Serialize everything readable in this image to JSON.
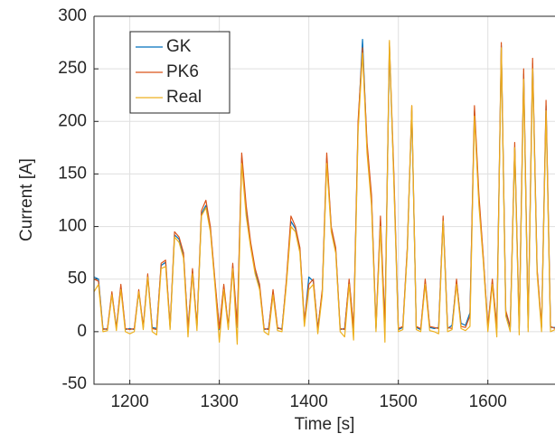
{
  "chart_data": {
    "type": "line",
    "xlabel": "Time [s]",
    "ylabel": "Current [A]",
    "xlim": [
      1160,
      1675
    ],
    "ylim": [
      -50,
      300
    ],
    "xticks": [
      1200,
      1300,
      1400,
      1500,
      1600
    ],
    "yticks": [
      -50,
      0,
      50,
      100,
      150,
      200,
      250,
      300
    ],
    "grid": true,
    "legend": "upper left",
    "x": [
      1160,
      1165,
      1170,
      1175,
      1180,
      1185,
      1190,
      1195,
      1200,
      1205,
      1210,
      1215,
      1220,
      1225,
      1230,
      1235,
      1240,
      1245,
      1250,
      1255,
      1260,
      1265,
      1270,
      1275,
      1280,
      1285,
      1290,
      1295,
      1300,
      1305,
      1310,
      1315,
      1320,
      1325,
      1330,
      1335,
      1340,
      1345,
      1350,
      1355,
      1360,
      1365,
      1370,
      1375,
      1380,
      1385,
      1390,
      1395,
      1400,
      1405,
      1410,
      1415,
      1420,
      1425,
      1430,
      1435,
      1440,
      1445,
      1450,
      1455,
      1460,
      1465,
      1470,
      1475,
      1480,
      1485,
      1490,
      1495,
      1500,
      1505,
      1510,
      1515,
      1520,
      1525,
      1530,
      1535,
      1540,
      1545,
      1550,
      1555,
      1560,
      1565,
      1570,
      1575,
      1580,
      1585,
      1590,
      1595,
      1600,
      1605,
      1610,
      1615,
      1620,
      1625,
      1630,
      1635,
      1640,
      1645,
      1650,
      1655,
      1660,
      1665,
      1670,
      1675
    ],
    "series": [
      {
        "name": "GK",
        "color": "#0072bd",
        "values": [
          52,
          50,
          3,
          2,
          36,
          4,
          43,
          2,
          3,
          2,
          38,
          4,
          53,
          4,
          3,
          63,
          66,
          4,
          92,
          88,
          72,
          3,
          58,
          4,
          112,
          120,
          98,
          48,
          2,
          43,
          4,
          62,
          4,
          165,
          115,
          82,
          58,
          42,
          2,
          3,
          38,
          3,
          3,
          48,
          105,
          98,
          78,
          8,
          52,
          48,
          3,
          38,
          165,
          98,
          78,
          2,
          3,
          48,
          3,
          195,
          278,
          175,
          125,
          3,
          105,
          4,
          270,
          145,
          2,
          4,
          78,
          210,
          4,
          2,
          48,
          4,
          3,
          4,
          108,
          3,
          6,
          48,
          8,
          6,
          18,
          210,
          125,
          68,
          4,
          48,
          3,
          272,
          18,
          4,
          175,
          3,
          245,
          4,
          255,
          58,
          4,
          215,
          4,
          4
        ]
      },
      {
        "name": "PK6",
        "color": "#d95319",
        "values": [
          50,
          48,
          2,
          3,
          38,
          3,
          45,
          3,
          2,
          3,
          40,
          5,
          55,
          3,
          2,
          65,
          68,
          5,
          95,
          90,
          75,
          2,
          60,
          5,
          115,
          125,
          100,
          50,
          3,
          45,
          5,
          65,
          5,
          170,
          120,
          85,
          60,
          45,
          3,
          2,
          40,
          4,
          2,
          50,
          110,
          100,
          80,
          10,
          45,
          50,
          2,
          40,
          170,
          100,
          80,
          3,
          2,
          50,
          4,
          200,
          270,
          180,
          130,
          4,
          110,
          5,
          275,
          150,
          3,
          5,
          80,
          215,
          5,
          3,
          50,
          5,
          4,
          3,
          110,
          4,
          3,
          50,
          5,
          4,
          15,
          215,
          130,
          70,
          5,
          50,
          4,
          275,
          20,
          5,
          180,
          4,
          250,
          5,
          260,
          60,
          5,
          220,
          5,
          3
        ]
      },
      {
        "name": "Real",
        "color": "#edb120",
        "values": [
          38,
          45,
          0,
          1,
          35,
          1,
          40,
          0,
          -2,
          0,
          38,
          2,
          52,
          0,
          -3,
          60,
          62,
          2,
          90,
          85,
          70,
          -5,
          55,
          1,
          110,
          118,
          95,
          45,
          -10,
          40,
          2,
          60,
          -12,
          160,
          110,
          80,
          55,
          40,
          0,
          -3,
          35,
          1,
          0,
          45,
          100,
          95,
          75,
          5,
          40,
          45,
          -2,
          35,
          160,
          95,
          75,
          0,
          -5,
          45,
          -8,
          190,
          265,
          170,
          120,
          0,
          100,
          -10,
          277,
          140,
          0,
          2,
          75,
          215,
          2,
          0,
          45,
          1,
          0,
          -2,
          105,
          0,
          2,
          45,
          3,
          1,
          5,
          205,
          120,
          65,
          0,
          45,
          -5,
          270,
          15,
          0,
          175,
          -3,
          240,
          0,
          250,
          55,
          0,
          210,
          0,
          2
        ]
      }
    ]
  }
}
